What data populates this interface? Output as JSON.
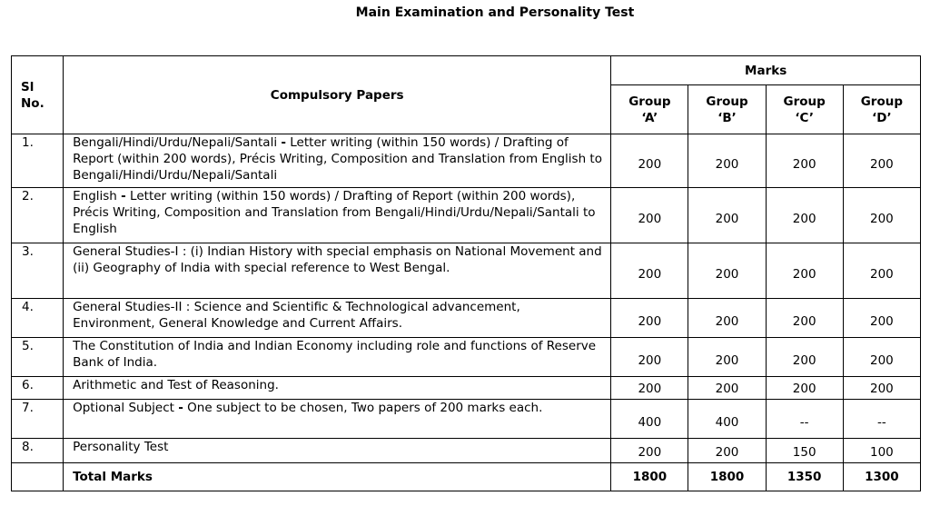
{
  "title": "Main Examination and Personality Test",
  "headers": {
    "sl_no": "Sl No.",
    "papers": "Compulsory Papers",
    "marks": "Marks",
    "groups": [
      "Group ‘A’",
      "Group ‘B’",
      "Group ‘C’",
      "Group ‘D’"
    ]
  },
  "rows": [
    {
      "sl": "1.",
      "bold_prefix": "",
      "paper": "Bengali/Hindi/Urdu/Nepali/Santali - Letter writing  (within 150 words) / Drafting of Report (within 200 words), Précis Writing, Composition and Translation from English to Bengali/Hindi/Urdu/Nepali/Santali",
      "marks": [
        "200",
        "200",
        "200",
        "200"
      ]
    },
    {
      "sl": "2.",
      "bold_prefix": "",
      "paper": "English - Letter writing (within 150 words) / Drafting of Report (within 200 words), Précis Writing, Composition and Translation from Bengali/Hindi/Urdu/Nepali/Santali to English",
      "marks": [
        "200",
        "200",
        "200",
        "200"
      ]
    },
    {
      "sl": "3.",
      "bold_prefix": "",
      "paper": "General Studies-I : (i) Indian History with special emphasis on National Movement and (ii) Geography  of India with special reference to West Bengal.",
      "marks": [
        "200",
        "200",
        "200",
        "200"
      ]
    },
    {
      "sl": "4.",
      "bold_prefix": "",
      "paper": "General Studies-II : Science and Scientific & Technological advancement, Environment, General Knowledge and Current Affairs.",
      "marks": [
        "200",
        "200",
        "200",
        "200"
      ]
    },
    {
      "sl": "5.",
      "bold_prefix": "",
      "paper": "The Constitution of India and Indian Economy including role and functions of Reserve Bank of India.",
      "marks": [
        "200",
        "200",
        "200",
        "200"
      ]
    },
    {
      "sl": "6.",
      "bold_prefix": "",
      "paper": "Arithmetic and Test of Reasoning.",
      "marks": [
        "200",
        "200",
        "200",
        "200"
      ]
    },
    {
      "sl": "7.",
      "bold_prefix": "",
      "paper": "Optional Subject - One subject to be chosen, Two papers of 200 marks each.",
      "marks": [
        "400",
        "400",
        "--",
        "--"
      ]
    },
    {
      "sl": "8.",
      "bold_prefix": "",
      "paper": "Personality Test",
      "marks": [
        "200",
        "200",
        "150",
        "100"
      ]
    }
  ],
  "total": {
    "label": "Total Marks",
    "marks": [
      "1800",
      "1800",
      "1350",
      "1300"
    ]
  }
}
